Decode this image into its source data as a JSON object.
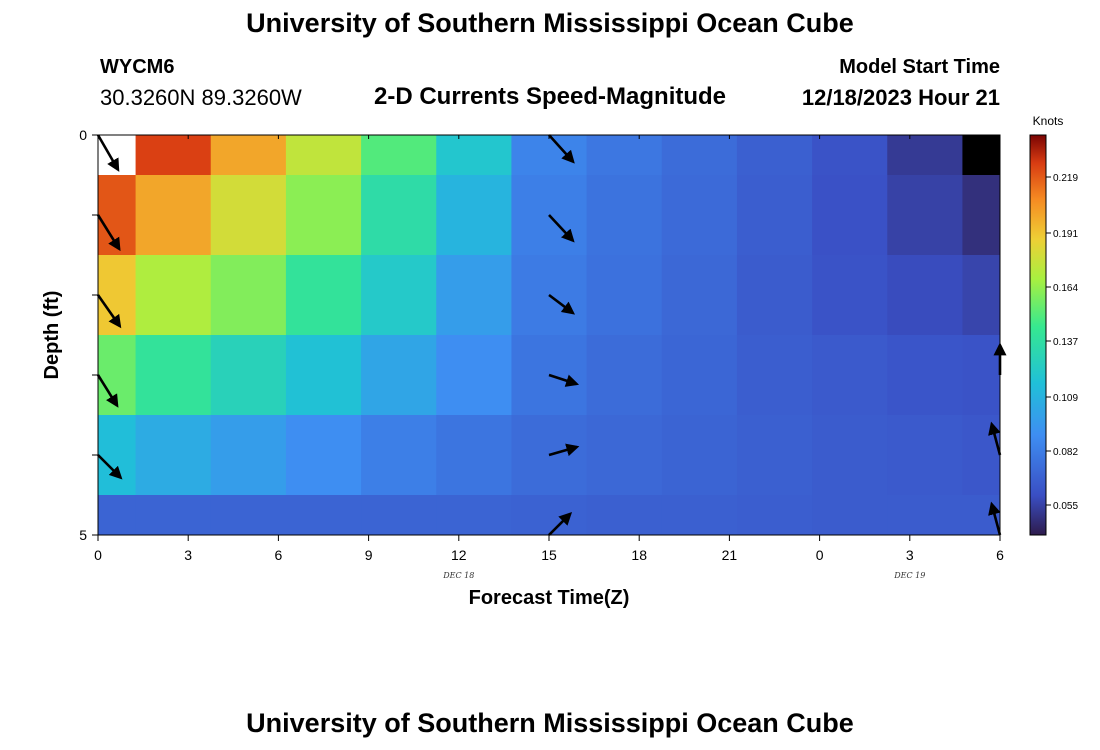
{
  "header": {
    "title": "University of Southern Mississippi Ocean Cube",
    "station_id": "WYCM6",
    "station_coords": "30.3260N  89.3260W",
    "chart_heading": "2-D Currents Speed-Magnitude",
    "model_start_label": "Model Start Time",
    "model_start_value": "12/18/2023 Hour 21"
  },
  "footer": {
    "title": "University of Southern Mississippi Ocean Cube"
  },
  "chart_data": {
    "type": "heatmap",
    "title": "2-D Currents Speed-Magnitude",
    "xlabel": "Forecast Time(Z)",
    "ylabel": "Depth (ft)",
    "x_tick_labels": [
      "0",
      "3",
      "6",
      "9",
      "12",
      "15",
      "18",
      "21",
      "0",
      "3",
      "6"
    ],
    "x_hours": [
      0,
      3,
      6,
      9,
      12,
      15,
      18,
      21,
      24,
      27,
      30
    ],
    "x_range_hours": [
      0,
      30
    ],
    "date_labels": [
      {
        "text": "DEC 18",
        "hour": 12
      },
      {
        "text": "DEC 19",
        "hour": 27
      }
    ],
    "y_tick_labels": [
      "0",
      "5"
    ],
    "y_range_ft": [
      0,
      5
    ],
    "colorbar": {
      "unit": "Knots",
      "tick_labels": [
        "0.219",
        "0.191",
        "0.164",
        "0.137",
        "0.109",
        "0.082",
        "0.055"
      ],
      "tick_values": [
        0.219,
        0.191,
        0.164,
        0.137,
        0.109,
        0.082,
        0.055
      ],
      "range": [
        0.04,
        0.24
      ]
    },
    "time_hours": [
      0,
      2.5,
      5,
      7.5,
      10,
      12.5,
      15,
      17.5,
      20,
      22.5,
      25,
      27.5,
      30
    ],
    "depth_ft": [
      0,
      1,
      2,
      3,
      4,
      5
    ],
    "speed_knots": [
      [
        0.24,
        0.225,
        0.2,
        0.175,
        0.15,
        0.12,
        0.085,
        0.079,
        0.074,
        0.068,
        0.062,
        0.052,
        0.04
      ],
      [
        0.22,
        0.2,
        0.18,
        0.162,
        0.135,
        0.11,
        0.083,
        0.077,
        0.073,
        0.067,
        0.061,
        0.055,
        0.048
      ],
      [
        0.19,
        0.17,
        0.16,
        0.14,
        0.122,
        0.098,
        0.081,
        0.076,
        0.072,
        0.066,
        0.062,
        0.059,
        0.056
      ],
      [
        0.155,
        0.14,
        0.128,
        0.117,
        0.102,
        0.09,
        0.078,
        0.074,
        0.071,
        0.067,
        0.065,
        0.063,
        0.062
      ],
      [
        0.115,
        0.105,
        0.098,
        0.09,
        0.083,
        0.078,
        0.074,
        0.072,
        0.07,
        0.068,
        0.066,
        0.065,
        0.064
      ],
      [
        0.07,
        0.07,
        0.07,
        0.07,
        0.07,
        0.07,
        0.069,
        0.068,
        0.068,
        0.067,
        0.066,
        0.066,
        0.066
      ]
    ],
    "arrows": [
      {
        "hour": 0,
        "depth_ft": 0,
        "angle_deg": 60,
        "length": 40
      },
      {
        "hour": 0,
        "depth_ft": 1,
        "angle_deg": 58,
        "length": 40
      },
      {
        "hour": 0,
        "depth_ft": 2,
        "angle_deg": 55,
        "length": 38
      },
      {
        "hour": 0,
        "depth_ft": 3,
        "angle_deg": 58,
        "length": 36
      },
      {
        "hour": 0,
        "depth_ft": 4,
        "angle_deg": 45,
        "length": 32
      },
      {
        "hour": 15,
        "depth_ft": 0,
        "angle_deg": 48,
        "length": 36
      },
      {
        "hour": 15,
        "depth_ft": 1,
        "angle_deg": 47,
        "length": 35
      },
      {
        "hour": 15,
        "depth_ft": 2,
        "angle_deg": 37,
        "length": 30
      },
      {
        "hour": 15,
        "depth_ft": 3,
        "angle_deg": 18,
        "length": 29
      },
      {
        "hour": 15,
        "depth_ft": 4,
        "angle_deg": -16,
        "length": 29
      },
      {
        "hour": 15,
        "depth_ft": 5,
        "angle_deg": -45,
        "length": 30
      },
      {
        "hour": 30,
        "depth_ft": 3,
        "angle_deg": -90,
        "length": 30
      },
      {
        "hour": 30,
        "depth_ft": 4,
        "angle_deg": -105,
        "length": 32
      },
      {
        "hour": 30,
        "depth_ft": 5,
        "angle_deg": -105,
        "length": 32
      }
    ]
  }
}
